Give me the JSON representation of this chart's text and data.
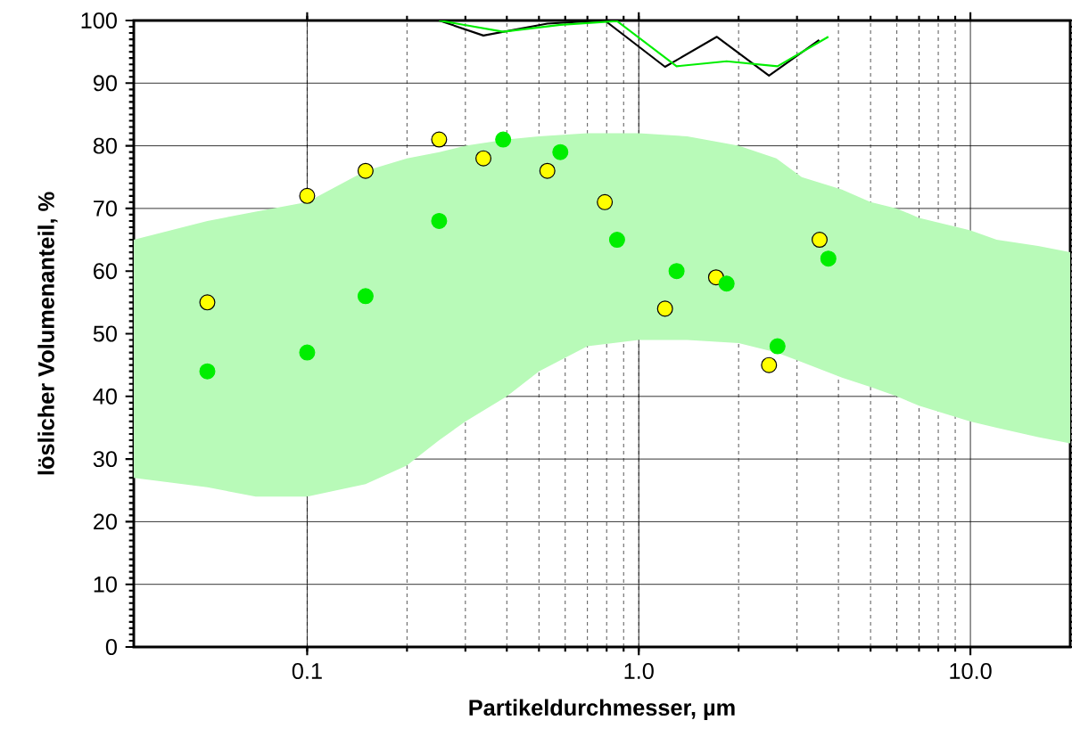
{
  "chart_data": {
    "type": "scatter",
    "xlabel": "Partikeldurchmesser, µm",
    "ylabel": "löslicher Volumenanteil, %",
    "log": "x",
    "grid": true,
    "marker": "circle",
    "xlim": [
      0.03,
      20
    ],
    "xticks": [
      {
        "value": 0.1,
        "label": "0.1"
      },
      {
        "value": 1,
        "label": "1.0"
      },
      {
        "value": 10,
        "label": "10.0"
      }
    ],
    "ylim": [
      0,
      100
    ],
    "yticks": [
      0,
      10,
      20,
      30,
      40,
      50,
      60,
      70,
      80,
      90,
      100
    ],
    "series": [
      {
        "type": "area",
        "color": "#00ee00",
        "x": [
          0.03,
          0.05,
          0.07,
          0.1,
          0.15,
          0.2,
          0.25,
          0.3,
          0.4,
          0.5,
          0.7,
          1.0,
          1.4,
          2.0,
          2.6,
          3.1,
          4.1,
          5,
          6,
          7,
          10,
          12,
          16,
          20
        ],
        "values": [
          null,
          null,
          null,
          null,
          null,
          null,
          null,
          null,
          null,
          null,
          null,
          null,
          null,
          null,
          null,
          null,
          null,
          null,
          null,
          null,
          null,
          null,
          null,
          null
        ],
        "upper": [
          65,
          68,
          69.5,
          71,
          76,
          78,
          79,
          80,
          81,
          81.5,
          82,
          82,
          81.5,
          80,
          78,
          75,
          73,
          71,
          70,
          68.5,
          66.5,
          65,
          64,
          63
        ],
        "lower": [
          27,
          25.5,
          24,
          24,
          26,
          29,
          33,
          36,
          40,
          44,
          48,
          49,
          49,
          48.5,
          47,
          45.5,
          43,
          41.5,
          40,
          38.5,
          36,
          35,
          33.5,
          32.5
        ]
      },
      {
        "type": "line",
        "marker": "none",
        "color": "#000000",
        "x": [
          0.25,
          0.34,
          0.53,
          0.79,
          1.2,
          1.72,
          2.47,
          3.5
        ],
        "values": [
          100,
          97.6,
          99.5,
          100,
          92.6,
          97.4,
          91.2,
          96.9
        ]
      },
      {
        "type": "line",
        "marker": "none",
        "color": "#00ee00",
        "x": [
          0.25,
          0.39,
          0.58,
          0.86,
          1.3,
          1.84,
          2.62,
          3.73
        ],
        "values": [
          100,
          98.2,
          99.3,
          99.9,
          92.7,
          93.5,
          92.7,
          97.4
        ]
      },
      {
        "color": "#ffff00",
        "x": [
          0.05,
          0.1,
          0.15,
          0.25,
          0.34,
          0.53,
          0.79,
          1.2,
          1.71,
          2.47,
          3.51
        ],
        "values": [
          55,
          72,
          76,
          81,
          78,
          76,
          71,
          54,
          59,
          45,
          65
        ]
      },
      {
        "color": "#00ee00",
        "x": [
          0.05,
          0.1,
          0.15,
          0.25,
          0.39,
          0.58,
          0.86,
          1.3,
          1.84,
          2.62,
          3.73
        ],
        "values": [
          44,
          47,
          56,
          68,
          81,
          79,
          65,
          60,
          58,
          48,
          62
        ]
      }
    ]
  }
}
